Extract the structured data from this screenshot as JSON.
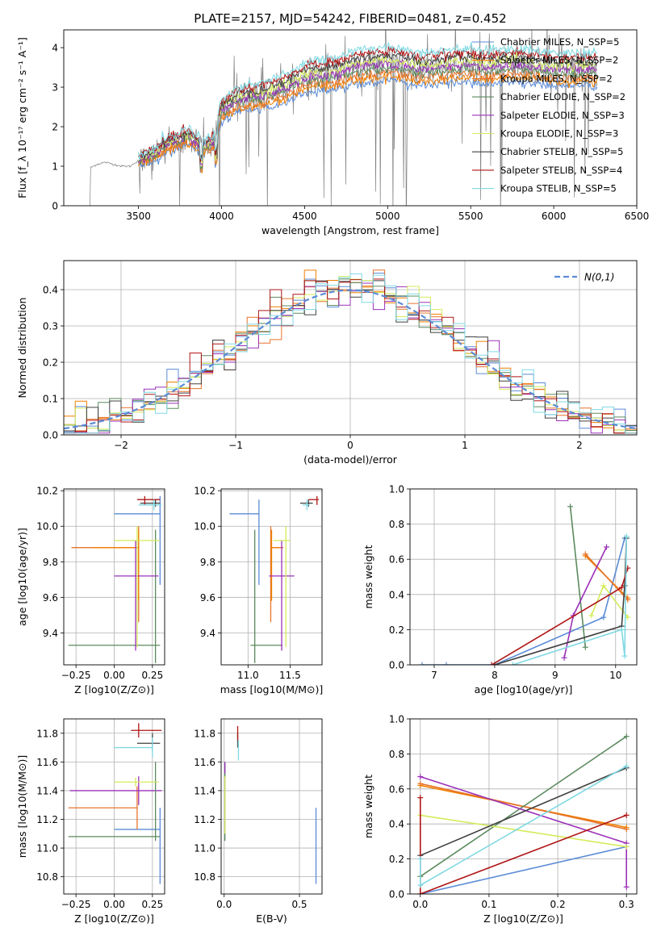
{
  "figure": {
    "title": "PLATE=2157, MJD=54242, FIBERID=0481, z=0.452"
  },
  "colors": {
    "chabrier_miles": "#5b8bd6",
    "salpeter_miles": "#f07f00",
    "kroupa_miles": "#e7742b",
    "chabrier_elodie": "#5c8a5e",
    "salpeter_elodie": "#9b30b8",
    "kroupa_elodie": "#d4ec5a",
    "chabrier_stelib": "#404040",
    "salpeter_stelib": "#b01515",
    "kroupa_stelib": "#7fd9e3",
    "data": "#7f7f7f",
    "gaussian": "#5b8bd6"
  },
  "chart_data": [
    {
      "id": "spectrum",
      "type": "line",
      "xlabel": "wavelength [Angstrom, rest frame]",
      "ylabel": "Flux [f_λ 10⁻¹⁷ erg cm⁻² s⁻¹ A⁻¹]",
      "xlim": [
        3050,
        6500
      ],
      "ylim": [
        0,
        4.45
      ],
      "xticks": [
        3500,
        4000,
        4500,
        5000,
        5500,
        6000,
        6500
      ],
      "yticks": [
        0,
        1,
        2,
        3,
        4
      ],
      "grid": false,
      "legend_position": "top-right",
      "legend": [
        {
          "label": "Chabrier MILES, N_SSP=5",
          "color_key": "chabrier_miles"
        },
        {
          "label": "Salpeter MILES, N_SSP=2",
          "color_key": "salpeter_miles"
        },
        {
          "label": "Kroupa MILES, N_SSP=2",
          "color_key": "kroupa_miles"
        },
        {
          "label": "Chabrier ELODIE, N_SSP=2",
          "color_key": "chabrier_elodie"
        },
        {
          "label": "Salpeter ELODIE, N_SSP=3",
          "color_key": "salpeter_elodie"
        },
        {
          "label": "Kroupa ELODIE, N_SSP=3",
          "color_key": "kroupa_elodie"
        },
        {
          "label": "Chabrier STELIB, N_SSP=5",
          "color_key": "chabrier_stelib"
        },
        {
          "label": "Salpeter STELIB, N_SSP=4",
          "color_key": "salpeter_stelib"
        },
        {
          "label": "Kroupa STELIB, N_SSP=5",
          "color_key": "kroupa_stelib"
        }
      ],
      "data_start": 3200,
      "data_end": 6260,
      "continuum": [
        [
          3200,
          0
        ],
        [
          3205,
          0.95
        ],
        [
          3250,
          1.05
        ],
        [
          3300,
          1.1
        ],
        [
          3350,
          1.05
        ],
        [
          3400,
          1.0
        ],
        [
          3450,
          1.0
        ],
        [
          3500,
          1.15
        ],
        [
          3600,
          1.3
        ],
        [
          3650,
          1.5
        ],
        [
          3700,
          1.6
        ],
        [
          3800,
          1.75
        ],
        [
          3850,
          1.6
        ],
        [
          3900,
          1.5
        ],
        [
          3950,
          1.6
        ],
        [
          4000,
          2.4
        ],
        [
          4100,
          2.7
        ],
        [
          4200,
          2.75
        ],
        [
          4300,
          2.85
        ],
        [
          4400,
          3.0
        ],
        [
          4500,
          3.25
        ],
        [
          4600,
          3.3
        ],
        [
          4700,
          3.35
        ],
        [
          4800,
          3.5
        ],
        [
          4900,
          3.55
        ],
        [
          5000,
          3.6
        ],
        [
          5100,
          3.55
        ],
        [
          5200,
          3.45
        ],
        [
          5300,
          3.5
        ],
        [
          5400,
          3.55
        ],
        [
          5500,
          3.55
        ],
        [
          5600,
          3.5
        ],
        [
          5700,
          3.55
        ],
        [
          5800,
          3.55
        ],
        [
          5900,
          3.5
        ],
        [
          6000,
          3.45
        ],
        [
          6100,
          3.45
        ],
        [
          6200,
          3.45
        ],
        [
          6260,
          3.45
        ]
      ]
    },
    {
      "id": "residuals",
      "type": "line",
      "xlabel": "(data-model)/error",
      "ylabel": "Normed distribution",
      "xlim": [
        -2.5,
        2.5
      ],
      "ylim": [
        0,
        0.48
      ],
      "xticks": [
        -2,
        -1,
        0,
        1,
        2
      ],
      "yticks": [
        0.0,
        0.1,
        0.2,
        0.3,
        0.4
      ],
      "grid": true,
      "legend_position": "top-right",
      "legend": [
        {
          "label": "N(0,1)",
          "color_key": "gaussian"
        }
      ],
      "bin_width": 0.1
    },
    {
      "id": "age-vs-Z",
      "type": "scatter",
      "xlabel": "Z [log10(Z/Z⊙)]",
      "ylabel": "age [log10(age/yr)]",
      "xlim": [
        -0.33,
        0.33
      ],
      "ylim": [
        9.22,
        10.21
      ],
      "xticks": [
        -0.25,
        0.0,
        0.25
      ],
      "xticklabels": [
        "−0.25",
        "0.00",
        "0.25"
      ],
      "yticks": [
        9.4,
        9.6,
        9.8,
        10.0,
        10.2
      ],
      "grid": true,
      "points": [
        {
          "x": 0.3,
          "y": 10.07,
          "xerr": [
            0.3,
            0.0
          ],
          "yerr": [
            0.4,
            0.1
          ],
          "color_key": "chabrier_miles"
        },
        {
          "x": 0.16,
          "y": 9.88,
          "xerr": [
            0.44,
            0.0
          ],
          "yerr": [
            0.42,
            0.12
          ],
          "color_key": "kroupa_miles"
        },
        {
          "x": 0.16,
          "y": 9.88,
          "xerr": [
            0.3,
            0.0
          ],
          "yerr": [
            0.3,
            0.1
          ],
          "color_key": "salpeter_miles"
        },
        {
          "x": 0.27,
          "y": 9.33,
          "xerr": [
            0.57,
            0.03
          ],
          "yerr": [
            0.1,
            0.65
          ],
          "color_key": "chabrier_elodie"
        },
        {
          "x": 0.14,
          "y": 9.72,
          "xerr": [
            0.14,
            0.15
          ],
          "yerr": [
            0.42,
            0.2
          ],
          "color_key": "salpeter_elodie"
        },
        {
          "x": 0.15,
          "y": 9.92,
          "xerr": [
            0.15,
            0.15
          ],
          "yerr": [
            0.6,
            0.08
          ],
          "color_key": "kroupa_elodie"
        },
        {
          "x": 0.27,
          "y": 10.13,
          "xerr": [
            0.1,
            0.03
          ],
          "yerr": [
            0.02,
            0.02
          ],
          "color_key": "chabrier_stelib"
        },
        {
          "x": 0.2,
          "y": 10.15,
          "xerr": [
            0.05,
            0.1
          ],
          "yerr": [
            0.03,
            0.02
          ],
          "color_key": "salpeter_stelib"
        },
        {
          "x": 0.26,
          "y": 10.12,
          "xerr": [
            0.1,
            0.05
          ],
          "yerr": [
            0.03,
            0.03
          ],
          "color_key": "kroupa_stelib"
        }
      ]
    },
    {
      "id": "age-vs-mass",
      "type": "scatter",
      "xlabel": "mass [log10(M/M⊙)]",
      "ylabel": "",
      "xlim": [
        10.68,
        11.88
      ],
      "ylim": [
        9.22,
        10.21
      ],
      "xticks": [
        11.0,
        11.5
      ],
      "yticks": [
        9.4,
        9.6,
        9.8,
        10.0,
        10.2
      ],
      "grid": true,
      "points": [
        {
          "x": 11.13,
          "y": 10.07,
          "xerr": [
            0.35,
            0.0
          ],
          "yerr": [
            0.4,
            0.08
          ],
          "color_key": "chabrier_miles"
        },
        {
          "x": 11.27,
          "y": 9.88,
          "xerr": [
            0.0,
            0.15
          ],
          "yerr": [
            0.42,
            0.12
          ],
          "color_key": "kroupa_miles"
        },
        {
          "x": 11.28,
          "y": 9.88,
          "xerr": [
            0.0,
            0.1
          ],
          "yerr": [
            0.3,
            0.1
          ],
          "color_key": "salpeter_miles"
        },
        {
          "x": 11.08,
          "y": 9.33,
          "xerr": [
            0.05,
            0.33
          ],
          "yerr": [
            0.1,
            0.65
          ],
          "color_key": "chabrier_elodie"
        },
        {
          "x": 11.4,
          "y": 9.72,
          "xerr": [
            0.15,
            0.15
          ],
          "yerr": [
            0.42,
            0.2
          ],
          "color_key": "salpeter_elodie"
        },
        {
          "x": 11.45,
          "y": 9.92,
          "xerr": [
            0.15,
            0.05
          ],
          "yerr": [
            0.6,
            0.08
          ],
          "color_key": "kroupa_elodie"
        },
        {
          "x": 11.72,
          "y": 10.13,
          "xerr": [
            0.1,
            0.05
          ],
          "yerr": [
            0.02,
            0.02
          ],
          "color_key": "chabrier_stelib"
        },
        {
          "x": 11.82,
          "y": 10.15,
          "xerr": [
            0.1,
            0.02
          ],
          "yerr": [
            0.03,
            0.02
          ],
          "color_key": "salpeter_stelib"
        },
        {
          "x": 11.7,
          "y": 10.12,
          "xerr": [
            0.05,
            0.03
          ],
          "yerr": [
            0.03,
            0.03
          ],
          "color_key": "kroupa_stelib"
        }
      ]
    },
    {
      "id": "mass-weight-vs-age",
      "type": "line",
      "xlabel": "age [log10(age/yr)]",
      "ylabel": "mass weight",
      "xlim": [
        6.6,
        10.35
      ],
      "ylim": [
        0,
        1.0
      ],
      "xticks": [
        7,
        8,
        9,
        10
      ],
      "yticks": [
        0.0,
        0.2,
        0.4,
        0.6,
        0.8,
        1.0
      ],
      "grid": true,
      "series": [
        {
          "color_key": "chabrier_miles",
          "x": [
            6.8,
            7.2,
            8.0,
            9.8,
            10.15
          ],
          "y": [
            0.0,
            0.0,
            0.0,
            0.27,
            0.72
          ]
        },
        {
          "color_key": "salpeter_miles",
          "x": [
            9.5,
            10.2
          ],
          "y": [
            0.62,
            0.38
          ]
        },
        {
          "color_key": "kroupa_miles",
          "x": [
            9.5,
            10.2
          ],
          "y": [
            0.63,
            0.37
          ]
        },
        {
          "color_key": "chabrier_elodie",
          "x": [
            9.25,
            9.5
          ],
          "y": [
            0.9,
            0.1
          ]
        },
        {
          "color_key": "salpeter_elodie",
          "x": [
            9.15,
            9.3,
            9.85
          ],
          "y": [
            0.04,
            0.28,
            0.67
          ]
        },
        {
          "color_key": "kroupa_elodie",
          "x": [
            9.6,
            9.8,
            10.2
          ],
          "y": [
            0.28,
            0.45,
            0.27
          ]
        },
        {
          "color_key": "chabrier_stelib",
          "x": [
            8.0,
            10.1,
            10.15,
            10.18
          ],
          "y": [
            0.0,
            0.22,
            0.45,
            0.72
          ]
        },
        {
          "color_key": "salpeter_stelib",
          "x": [
            7.95,
            10.1,
            10.2
          ],
          "y": [
            0.0,
            0.44,
            0.55
          ]
        },
        {
          "color_key": "kroupa_stelib",
          "x": [
            8.3,
            10.1,
            10.15,
            10.18
          ],
          "y": [
            0.0,
            0.2,
            0.05,
            0.73
          ]
        }
      ]
    },
    {
      "id": "mass-vs-Z",
      "type": "scatter",
      "xlabel": "Z [log10(Z/Z⊙)]",
      "ylabel": "mass [log10(M/M⊙)]",
      "xlim": [
        -0.33,
        0.33
      ],
      "ylim": [
        10.68,
        11.9
      ],
      "xticks": [
        -0.25,
        0.0,
        0.25
      ],
      "xticklabels": [
        "−0.25",
        "0.00",
        "0.25"
      ],
      "yticks": [
        10.8,
        11.0,
        11.2,
        11.4,
        11.6,
        11.8
      ],
      "grid": true,
      "points": [
        {
          "x": 0.3,
          "y": 11.13,
          "xerr": [
            0.3,
            0.0
          ],
          "yerr": [
            0.38,
            0.15
          ],
          "color_key": "chabrier_miles"
        },
        {
          "x": 0.15,
          "y": 11.28,
          "xerr": [
            0.45,
            0.0
          ],
          "yerr": [
            0.15,
            0.15
          ],
          "color_key": "kroupa_miles"
        },
        {
          "x": 0.16,
          "y": 11.4,
          "xerr": [
            0.45,
            0.15
          ],
          "yerr": [
            0.1,
            0.1
          ],
          "color_key": "salpeter_elodie"
        },
        {
          "x": 0.27,
          "y": 11.08,
          "xerr": [
            0.57,
            0.03
          ],
          "yerr": [
            0.03,
            0.52
          ],
          "color_key": "chabrier_elodie"
        },
        {
          "x": 0.14,
          "y": 11.46,
          "xerr": [
            0.14,
            0.15
          ],
          "yerr": [
            0.03,
            0.03
          ],
          "color_key": "kroupa_elodie"
        },
        {
          "x": 0.25,
          "y": 11.73,
          "xerr": [
            0.1,
            0.05
          ],
          "yerr": [
            0.05,
            0.07
          ],
          "color_key": "chabrier_stelib"
        },
        {
          "x": 0.16,
          "y": 11.82,
          "xerr": [
            0.05,
            0.15
          ],
          "yerr": [
            0.05,
            0.05
          ],
          "color_key": "salpeter_stelib"
        },
        {
          "x": 0.25,
          "y": 11.7,
          "xerr": [
            0.25,
            0.0
          ],
          "yerr": [
            0.07,
            0.07
          ],
          "color_key": "kroupa_stelib"
        }
      ]
    },
    {
      "id": "mass-vs-ebv",
      "type": "scatter",
      "xlabel": "E(B-V)",
      "ylabel": "",
      "xlim": [
        -0.02,
        0.65
      ],
      "ylim": [
        10.68,
        11.9
      ],
      "xticks": [
        0.0,
        0.5
      ],
      "xticklabels": [
        "0.0",
        "0.5"
      ],
      "yticks": [
        10.8,
        11.0,
        11.2,
        11.4,
        11.6,
        11.8
      ],
      "grid": true,
      "points": [
        {
          "x": 0.61,
          "y": 11.05,
          "xerr": [
            0,
            0
          ],
          "yerr": [
            0.3,
            0.23
          ],
          "color_key": "chabrier_miles"
        },
        {
          "x": 0.005,
          "y": 11.3,
          "xerr": [
            0,
            0
          ],
          "yerr": [
            0.25,
            0.3
          ],
          "color_key": "chabrier_elodie"
        },
        {
          "x": 0.005,
          "y": 11.56,
          "xerr": [
            0,
            0
          ],
          "yerr": [
            0.04,
            0.04
          ],
          "color_key": "salpeter_elodie"
        },
        {
          "x": 0.005,
          "y": 11.3,
          "xerr": [
            0,
            0
          ],
          "yerr": [
            0.2,
            0.2
          ],
          "color_key": "kroupa_elodie"
        },
        {
          "x": 0.09,
          "y": 11.75,
          "xerr": [
            0,
            0
          ],
          "yerr": [
            0.05,
            0.05
          ],
          "color_key": "chabrier_stelib"
        },
        {
          "x": 0.09,
          "y": 11.8,
          "xerr": [
            0,
            0
          ],
          "yerr": [
            0.05,
            0.05
          ],
          "color_key": "salpeter_stelib"
        },
        {
          "x": 0.095,
          "y": 11.68,
          "xerr": [
            0,
            0
          ],
          "yerr": [
            0.07,
            0.07
          ],
          "color_key": "kroupa_stelib"
        }
      ]
    },
    {
      "id": "mass-weight-vs-Z",
      "type": "line",
      "xlabel": "Z [log10(Z/Z⊙)]",
      "ylabel": "mass weight",
      "xlim": [
        -0.015,
        0.315
      ],
      "ylim": [
        0,
        1.0
      ],
      "xticks": [
        0.0,
        0.1,
        0.2,
        0.3
      ],
      "xticklabels": [
        "0.0",
        "0.1",
        "0.2",
        "0.3"
      ],
      "yticks": [
        0.0,
        0.2,
        0.4,
        0.6,
        0.8,
        1.0
      ],
      "grid": true,
      "series": [
        {
          "color_key": "chabrier_miles",
          "x": [
            0.0,
            0.3
          ],
          "y": [
            0.0,
            0.27
          ]
        },
        {
          "color_key": "salpeter_miles",
          "x": [
            0.0,
            0.3
          ],
          "y": [
            0.62,
            0.38
          ]
        },
        {
          "color_key": "kroupa_miles",
          "x": [
            0.0,
            0.3
          ],
          "y": [
            0.63,
            0.37
          ]
        },
        {
          "color_key": "chabrier_elodie",
          "x": [
            0.0,
            0.3
          ],
          "y": [
            0.1,
            0.9
          ]
        },
        {
          "color_key": "salpeter_elodie",
          "x": [
            0.0,
            0.3,
            0.3
          ],
          "y": [
            0.67,
            0.29,
            0.04
          ]
        },
        {
          "color_key": "kroupa_elodie",
          "x": [
            0.0,
            0.3
          ],
          "y": [
            0.45,
            0.27
          ]
        },
        {
          "color_key": "chabrier_stelib",
          "x": [
            0.0,
            0.3
          ],
          "y": [
            0.22,
            0.72
          ]
        },
        {
          "color_key": "salpeter_stelib",
          "x": [
            0.0,
            0.0,
            0.3
          ],
          "y": [
            0.55,
            0.0,
            0.45
          ]
        },
        {
          "color_key": "kroupa_stelib",
          "x": [
            0.0,
            0.0,
            0.3
          ],
          "y": [
            0.2,
            0.05,
            0.73
          ]
        }
      ]
    }
  ]
}
